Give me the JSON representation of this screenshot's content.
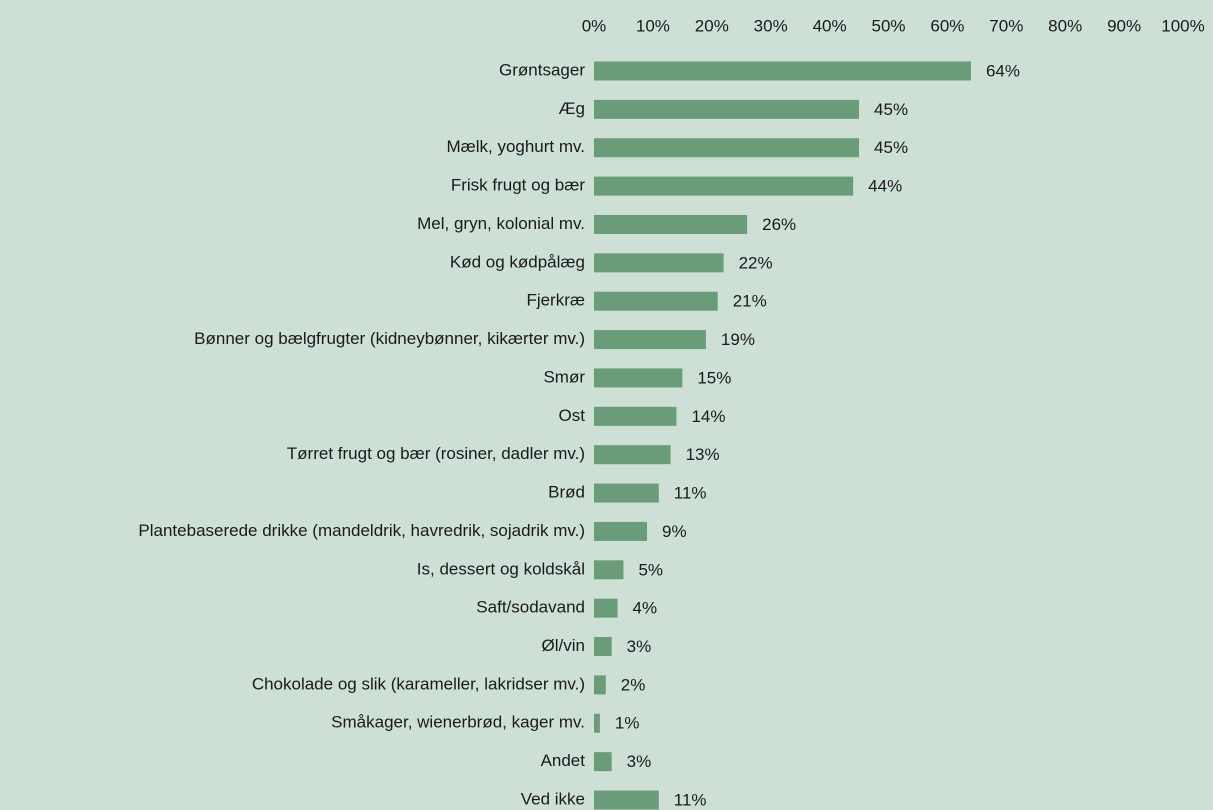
{
  "chart_data": {
    "type": "bar",
    "orientation": "horizontal",
    "categories": [
      "Grøntsager",
      "Æg",
      "Mælk, yoghurt mv.",
      "Frisk frugt og bær",
      "Mel, gryn, kolonial mv.",
      "Kød og kødpålæg",
      "Fjerkræ",
      "Bønner og bælgfrugter (kidneybønner, kikærter mv.)",
      "Smør",
      "Ost",
      "Tørret frugt og bær (rosiner, dadler mv.)",
      "Brød",
      "Plantebaserede drikke (mandeldrik, havredrik, sojadrik mv.)",
      "Is, dessert og koldskål",
      "Saft/sodavand",
      "Øl/vin",
      "Chokolade og slik (karameller, lakridser mv.)",
      "Småkager, wienerbrød, kager mv.",
      "Andet",
      "Ved ikke"
    ],
    "values": [
      64,
      45,
      45,
      44,
      26,
      22,
      21,
      19,
      15,
      14,
      13,
      11,
      9,
      5,
      4,
      3,
      2,
      1,
      3,
      11
    ],
    "value_labels": [
      "64%",
      "45%",
      "45%",
      "44%",
      "26%",
      "22%",
      "21%",
      "19%",
      "15%",
      "14%",
      "13%",
      "11%",
      "9%",
      "5%",
      "4%",
      "3%",
      "2%",
      "1%",
      "3%",
      "11%"
    ],
    "color": "#6a9c7a",
    "xlim": [
      0,
      100
    ],
    "xticks": [
      {
        "value": 0,
        "label": "0%"
      },
      {
        "value": 10,
        "label": "10%"
      },
      {
        "value": 20,
        "label": "20%"
      },
      {
        "value": 30,
        "label": "30%"
      },
      {
        "value": 40,
        "label": "40%"
      },
      {
        "value": 50,
        "label": "50%"
      },
      {
        "value": 60,
        "label": "60%"
      },
      {
        "value": 70,
        "label": "70%"
      },
      {
        "value": 80,
        "label": "80%"
      },
      {
        "value": 90,
        "label": "90%"
      },
      {
        "value": 100,
        "label": "100%"
      }
    ],
    "grid": false
  }
}
